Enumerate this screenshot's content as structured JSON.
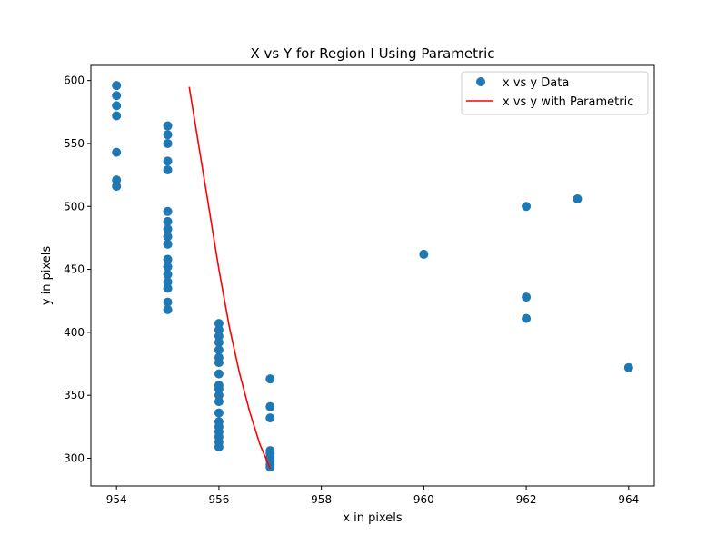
{
  "chart_data": {
    "type": "scatter",
    "title": "X vs Y for Region I Using Parametric",
    "xlabel": "x in pixels",
    "ylabel": "y in pixels",
    "xlim": [
      953.5,
      964.5
    ],
    "ylim": [
      278,
      612
    ],
    "x_ticks": [
      954,
      956,
      958,
      960,
      962,
      964
    ],
    "y_ticks": [
      300,
      350,
      400,
      450,
      500,
      550,
      600
    ],
    "x_tick_labels": [
      "954",
      "956",
      "958",
      "960",
      "962",
      "964"
    ],
    "y_tick_labels": [
      "300",
      "350",
      "400",
      "450",
      "500",
      "550",
      "600"
    ],
    "grid": false,
    "legend_position": "top-right",
    "series": [
      {
        "name": "x vs y Data",
        "kind": "scatter",
        "color": "#1f77b4",
        "points": [
          [
            954,
            596
          ],
          [
            954,
            588
          ],
          [
            954,
            580
          ],
          [
            954,
            572
          ],
          [
            954,
            543
          ],
          [
            954,
            521
          ],
          [
            954,
            516
          ],
          [
            955,
            564
          ],
          [
            955,
            557
          ],
          [
            955,
            550
          ],
          [
            955,
            536
          ],
          [
            955,
            529
          ],
          [
            955,
            496
          ],
          [
            955,
            488
          ],
          [
            955,
            482
          ],
          [
            955,
            476
          ],
          [
            955,
            470
          ],
          [
            955,
            458
          ],
          [
            955,
            452
          ],
          [
            955,
            446
          ],
          [
            955,
            440
          ],
          [
            955,
            435
          ],
          [
            955,
            424
          ],
          [
            955,
            418
          ],
          [
            956,
            407
          ],
          [
            956,
            402
          ],
          [
            956,
            397
          ],
          [
            956,
            392
          ],
          [
            956,
            386
          ],
          [
            956,
            380
          ],
          [
            956,
            376
          ],
          [
            956,
            367
          ],
          [
            956,
            358
          ],
          [
            956,
            355
          ],
          [
            956,
            350
          ],
          [
            956,
            345
          ],
          [
            956,
            336
          ],
          [
            956,
            329
          ],
          [
            956,
            325
          ],
          [
            956,
            321
          ],
          [
            956,
            317
          ],
          [
            956,
            313
          ],
          [
            956,
            309
          ],
          [
            957,
            363
          ],
          [
            957,
            341
          ],
          [
            957,
            332
          ],
          [
            957,
            306
          ],
          [
            957,
            304
          ],
          [
            957,
            301
          ],
          [
            957,
            298
          ],
          [
            957,
            295
          ],
          [
            957,
            293
          ],
          [
            960,
            462
          ],
          [
            962,
            500
          ],
          [
            962,
            428
          ],
          [
            962,
            411
          ],
          [
            963,
            506
          ],
          [
            964,
            372
          ]
        ]
      },
      {
        "name": "x vs y with Parametric",
        "kind": "line",
        "color": "#ff0000",
        "points": [
          [
            955.42,
            595
          ],
          [
            955.6,
            550
          ],
          [
            955.8,
            500
          ],
          [
            956.0,
            450
          ],
          [
            956.2,
            405
          ],
          [
            956.4,
            368
          ],
          [
            956.6,
            337
          ],
          [
            956.8,
            311
          ],
          [
            957.0,
            292
          ]
        ]
      }
    ]
  }
}
